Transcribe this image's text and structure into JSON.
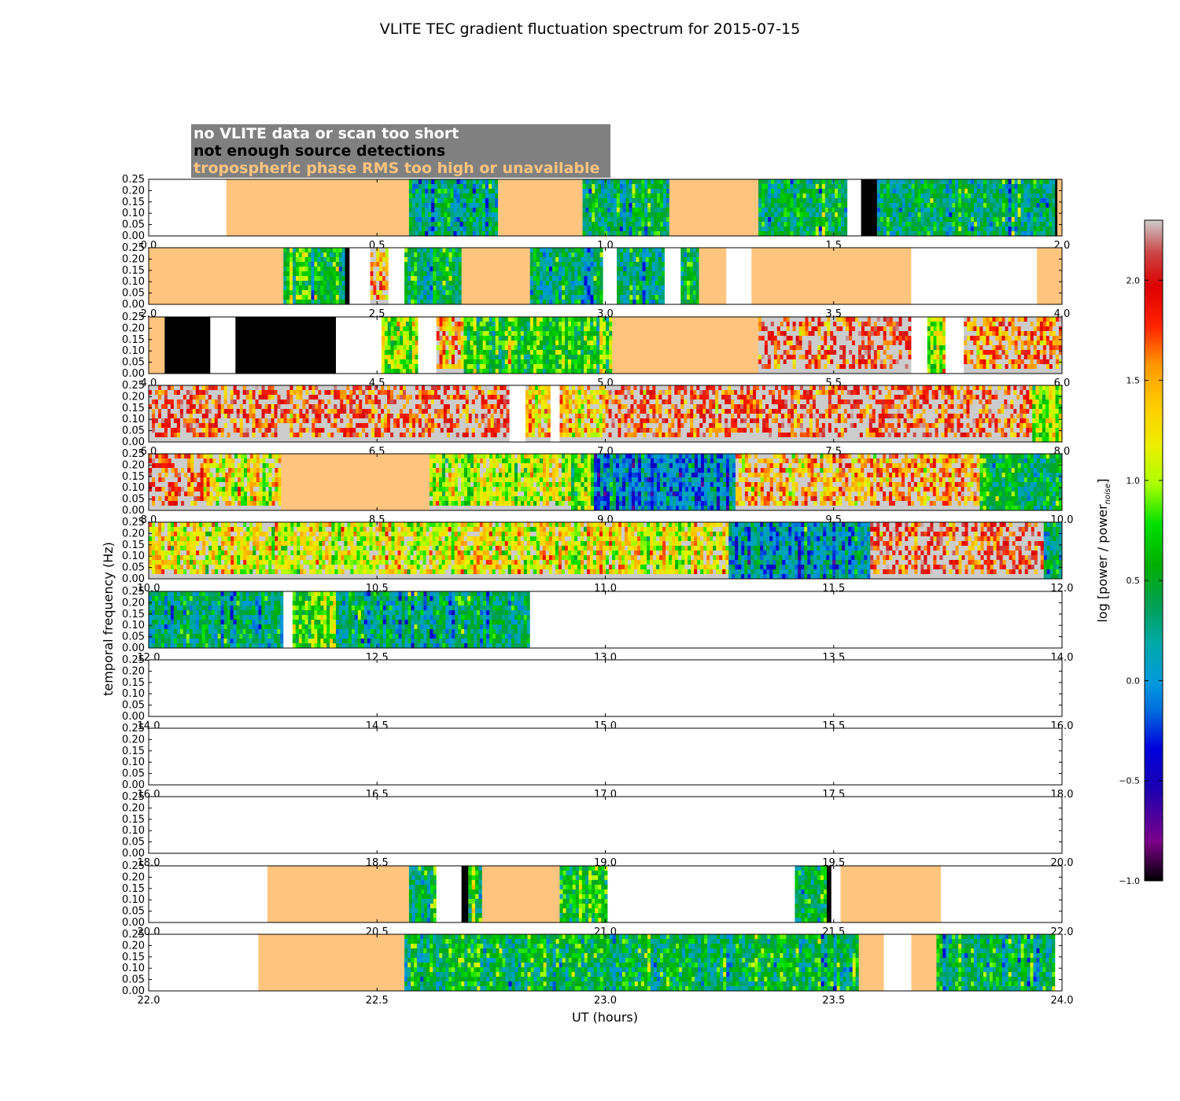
{
  "chart_data": {
    "type": "heatmap",
    "title": "VLITE TEC gradient fluctuation spectrum for 2015-07-15",
    "xlabel": "UT (hours)",
    "ylabel": "temporal frequency (Hz)",
    "colorbar": {
      "label_main": "log [power / power",
      "label_sub": "noise",
      "label_end": "]",
      "range": [
        -1.0,
        2.3
      ],
      "ticks": [
        "−1.0",
        "−0.5",
        "0.0",
        "0.5",
        "1.0",
        "1.5",
        "2.0"
      ],
      "tick_values": [
        -1.0,
        -0.5,
        0.0,
        0.5,
        1.0,
        1.5,
        2.0
      ],
      "colormap": "spectral"
    },
    "legend": [
      {
        "text": "no VLITE data or scan too short",
        "color": "#ffffff"
      },
      {
        "text": "not enough source detections",
        "color": "#000000"
      },
      {
        "text": "tropospheric phase RMS too high or unavailable",
        "color": "#ffc47e"
      }
    ],
    "legend_box_color": "#808080",
    "category_colors": {
      "no_data": "#ffffff",
      "few_detections": "#000000",
      "tropo": "#ffc47e",
      "below_floor": "#cccccc"
    },
    "y_ticks": [
      "0.00",
      "0.05",
      "0.10",
      "0.15",
      "0.20",
      "0.25"
    ],
    "y_tick_values": [
      0,
      0.05,
      0.1,
      0.15,
      0.2,
      0.25
    ],
    "ylim": [
      0,
      0.25
    ],
    "panels": [
      {
        "xlim": [
          0.0,
          2.0
        ],
        "xticks": [
          "0.0",
          "0.5",
          "1.0",
          "1.5",
          "2.0"
        ],
        "segments": [
          [
            "none",
            0,
            0.17
          ],
          [
            "tropo",
            0.17,
            0.57
          ],
          [
            "data",
            0.57,
            0.765,
            0.3
          ],
          [
            "tropo",
            0.765,
            0.95
          ],
          [
            "data",
            0.95,
            1.14,
            0.35
          ],
          [
            "tropo",
            1.14,
            1.335
          ],
          [
            "data",
            1.335,
            1.53,
            0.45
          ],
          [
            "none",
            1.53,
            1.56
          ],
          [
            "black",
            1.56,
            1.595
          ],
          [
            "data",
            1.595,
            1.985,
            0.4
          ],
          [
            "black",
            1.985,
            1.99
          ],
          [
            "tropo",
            1.99,
            2.0
          ]
        ]
      },
      {
        "xlim": [
          2.0,
          4.0
        ],
        "xticks": [
          "2.0",
          "2.5",
          "3.0",
          "3.5",
          "4.0"
        ],
        "segments": [
          [
            "tropo",
            2.0,
            2.295
          ],
          [
            "data",
            2.295,
            2.43,
            0.55
          ],
          [
            "black",
            2.43,
            2.44
          ],
          [
            "none",
            2.44,
            2.485
          ],
          [
            "data",
            2.485,
            2.525,
            1.5
          ],
          [
            "none",
            2.525,
            2.56
          ],
          [
            "data",
            2.56,
            2.685,
            0.5
          ],
          [
            "tropo",
            2.685,
            2.835
          ],
          [
            "data",
            2.835,
            2.995,
            0.3
          ],
          [
            "none",
            2.995,
            3.025
          ],
          [
            "data",
            3.025,
            3.13,
            0.3
          ],
          [
            "none",
            3.13,
            3.165
          ],
          [
            "data",
            3.165,
            3.205,
            0.4
          ],
          [
            "tropo",
            3.205,
            3.265
          ],
          [
            "none",
            3.265,
            3.32
          ],
          [
            "tropo",
            3.32,
            3.67
          ],
          [
            "none",
            3.67,
            3.945
          ],
          [
            "tropo",
            3.945,
            4.0
          ]
        ]
      },
      {
        "xlim": [
          4.0,
          6.0
        ],
        "xticks": [
          "4.0",
          "4.5",
          "5.0",
          "5.5",
          "6.0"
        ],
        "segments": [
          [
            "tropo",
            4.0,
            4.035
          ],
          [
            "black",
            4.035,
            4.135
          ],
          [
            "none",
            4.135,
            4.19
          ],
          [
            "black",
            4.19,
            4.41
          ],
          [
            "none",
            4.41,
            4.51
          ],
          [
            "data",
            4.51,
            4.59,
            1.0
          ],
          [
            "none",
            4.59,
            4.63
          ],
          [
            "data",
            4.63,
            4.69,
            1.5
          ],
          [
            "data",
            4.69,
            5.015,
            0.7
          ],
          [
            "tropo",
            5.015,
            5.335
          ],
          [
            "data",
            5.335,
            5.67,
            1.8
          ],
          [
            "none",
            5.67,
            5.705
          ],
          [
            "data",
            5.705,
            5.745,
            1.0
          ],
          [
            "none",
            5.745,
            5.785
          ],
          [
            "data",
            5.785,
            6.0,
            1.6
          ]
        ]
      },
      {
        "xlim": [
          6.0,
          8.0
        ],
        "xticks": [
          "6.0",
          "6.5",
          "7.0",
          "7.5",
          "8.0"
        ],
        "segments": [
          [
            "data",
            6.0,
            6.79,
            1.8
          ],
          [
            "none",
            6.79,
            6.825
          ],
          [
            "data",
            6.825,
            6.88,
            1.2
          ],
          [
            "none",
            6.88,
            6.9
          ],
          [
            "data",
            6.9,
            7.0,
            1.4
          ],
          [
            "data",
            7.0,
            7.935,
            1.8
          ],
          [
            "data",
            7.935,
            8.0,
            0.9
          ]
        ]
      },
      {
        "xlim": [
          8.0,
          10.0
        ],
        "xticks": [
          "8.0",
          "8.5",
          "9.0",
          "9.5",
          "10.0"
        ],
        "segments": [
          [
            "data",
            8.0,
            8.12,
            1.7
          ],
          [
            "data",
            8.12,
            8.29,
            1.2
          ],
          [
            "tropo",
            8.29,
            8.615
          ],
          [
            "data",
            8.615,
            8.925,
            1.1
          ],
          [
            "data",
            8.925,
            8.975,
            0.8
          ],
          [
            "data",
            8.975,
            9.285,
            0.0
          ],
          [
            "data",
            9.285,
            9.82,
            1.5
          ],
          [
            "data",
            9.82,
            10.0,
            0.5
          ]
        ]
      },
      {
        "xlim": [
          10.0,
          12.0
        ],
        "xticks": [
          "10.0",
          "10.5",
          "11.0",
          "11.5",
          "12.0"
        ],
        "segments": [
          [
            "data",
            10.0,
            11.27,
            1.2
          ],
          [
            "data",
            11.27,
            11.58,
            0.1
          ],
          [
            "data",
            11.58,
            11.96,
            1.8
          ],
          [
            "data",
            11.96,
            12.0,
            0.3
          ]
        ]
      },
      {
        "xlim": [
          12.0,
          14.0
        ],
        "xticks": [
          "12.0",
          "12.5",
          "13.0",
          "13.5",
          "14.0"
        ],
        "segments": [
          [
            "data",
            12.0,
            12.295,
            0.3
          ],
          [
            "none",
            12.295,
            12.315
          ],
          [
            "data",
            12.315,
            12.41,
            0.9
          ],
          [
            "data",
            12.41,
            12.835,
            0.3
          ],
          [
            "none",
            12.835,
            14.0
          ]
        ]
      },
      {
        "xlim": [
          14.0,
          16.0
        ],
        "xticks": [
          "14.0",
          "14.5",
          "15.0",
          "15.5",
          "16.0"
        ],
        "segments": [
          [
            "none",
            14.0,
            16.0
          ]
        ]
      },
      {
        "xlim": [
          16.0,
          18.0
        ],
        "xticks": [
          "16.0",
          "16.5",
          "17.0",
          "17.5",
          "18.0"
        ],
        "segments": [
          [
            "none",
            16.0,
            18.0
          ]
        ]
      },
      {
        "xlim": [
          18.0,
          20.0
        ],
        "xticks": [
          "18.0",
          "18.5",
          "19.0",
          "19.5",
          "20.0"
        ],
        "segments": [
          [
            "none",
            18.0,
            20.0
          ]
        ]
      },
      {
        "xlim": [
          20.0,
          22.0
        ],
        "xticks": [
          "20.0",
          "20.5",
          "21.0",
          "21.5",
          "22.0"
        ],
        "segments": [
          [
            "none",
            20.0,
            20.26
          ],
          [
            "tropo",
            20.26,
            20.57
          ],
          [
            "data",
            20.57,
            20.63,
            0.5
          ],
          [
            "none",
            20.63,
            20.685
          ],
          [
            "black",
            20.685,
            20.7
          ],
          [
            "data",
            20.7,
            20.73,
            0.7
          ],
          [
            "tropo",
            20.73,
            20.9
          ],
          [
            "data",
            20.9,
            21.005,
            0.7
          ],
          [
            "none",
            21.005,
            21.415
          ],
          [
            "data",
            21.415,
            21.485,
            0.4
          ],
          [
            "black",
            21.485,
            21.495
          ],
          [
            "none",
            21.495,
            21.515
          ],
          [
            "tropo",
            21.515,
            21.735
          ],
          [
            "none",
            21.735,
            22.0
          ]
        ]
      },
      {
        "xlim": [
          22.0,
          24.0
        ],
        "xticks": [
          "22.0",
          "22.5",
          "23.0",
          "23.5",
          "24.0"
        ],
        "segments": [
          [
            "none",
            22.0,
            22.24
          ],
          [
            "tropo",
            22.24,
            22.56
          ],
          [
            "data",
            22.56,
            23.555,
            0.45
          ],
          [
            "tropo",
            23.555,
            23.61
          ],
          [
            "none",
            23.61,
            23.67
          ],
          [
            "tropo",
            23.67,
            23.725
          ],
          [
            "data",
            23.725,
            23.985,
            0.4
          ],
          [
            "none",
            23.985,
            24.0
          ]
        ]
      }
    ]
  }
}
